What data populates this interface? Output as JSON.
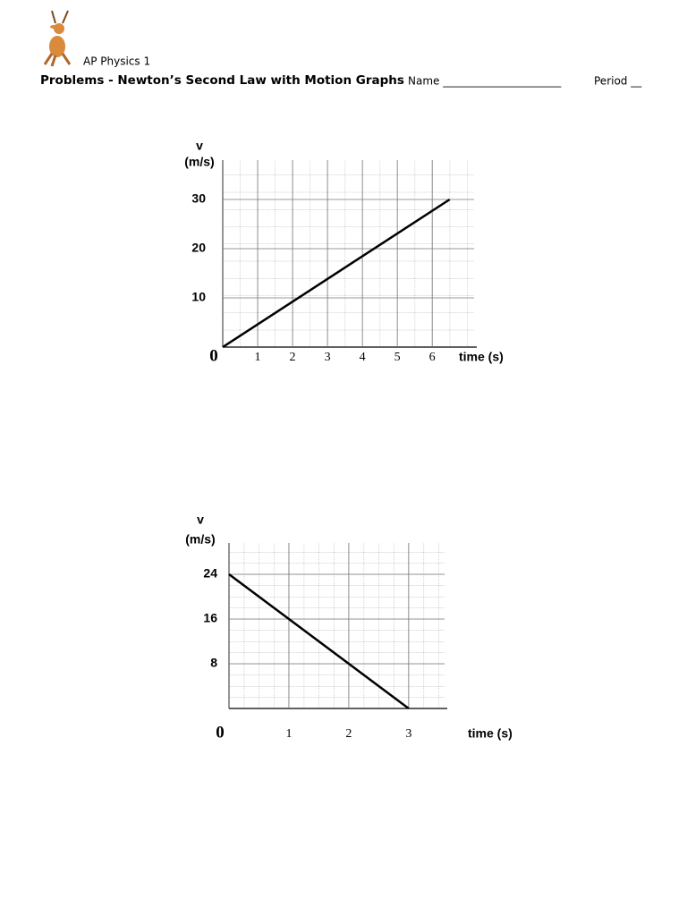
{
  "header": {
    "course": "AP Physics 1",
    "title": "Problems - Newton’s Second Law with Motion Graphs",
    "name_label": "Name ______________________",
    "period_label": "Period __"
  },
  "chart_data": [
    {
      "type": "line",
      "ylabel": [
        "v",
        "(m/s)"
      ],
      "xlabel": "time (s)",
      "x": [
        0,
        6.5
      ],
      "values": [
        0,
        30
      ],
      "color": "#000000",
      "xlim": [
        0,
        7.2
      ],
      "ylim": [
        0,
        38
      ],
      "xticks": [
        0,
        1,
        2,
        3,
        4,
        5,
        6
      ],
      "yticks": [
        10,
        20,
        30
      ],
      "grid": true,
      "x_minor_step": 0.5,
      "y_minor_step": 3.5
    },
    {
      "type": "line",
      "ylabel": [
        "v",
        "(m/s)"
      ],
      "xlabel": "time (s)",
      "x": [
        0,
        3
      ],
      "values": [
        24,
        0
      ],
      "color": "#000000",
      "xlim": [
        0,
        3.6
      ],
      "ylim": [
        0,
        29.6
      ],
      "xticks": [
        0,
        1,
        2,
        3
      ],
      "yticks": [
        8,
        16,
        24
      ],
      "grid": true,
      "x_minor_step": 0.25,
      "y_minor_step": 2
    }
  ]
}
